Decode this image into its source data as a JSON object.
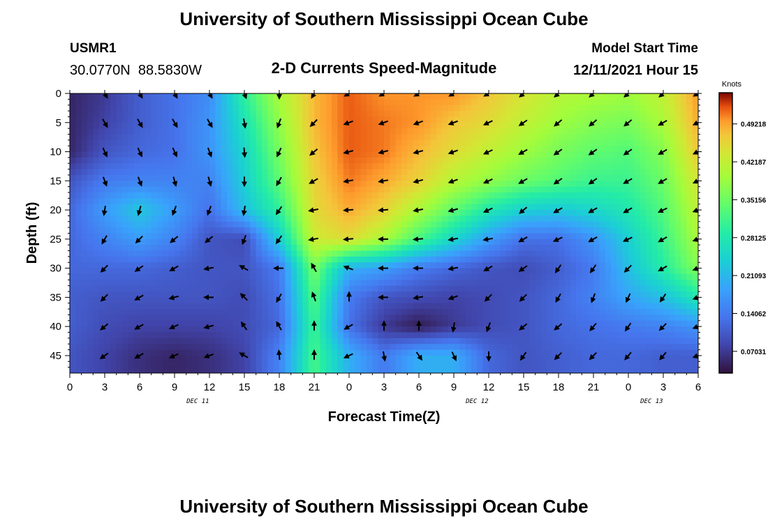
{
  "chart_data": {
    "type": "heatmap",
    "title": "University of Southern Mississippi Ocean Cube",
    "subtitle": "2-D Currents Speed-Magnitude",
    "station_id": "USMR1",
    "station_coords": "30.0770N  88.5830W",
    "model_start_label": "Model Start Time",
    "model_start_value": "12/11/2021 Hour 15",
    "xlabel": "Forecast Time(Z)",
    "ylabel": "Depth (ft)",
    "x_tick_labels": [
      "0",
      "3",
      "6",
      "9",
      "12",
      "15",
      "18",
      "21",
      "0",
      "3",
      "6",
      "9",
      "12",
      "15",
      "18",
      "21",
      "0",
      "3",
      "6"
    ],
    "x_date_labels": [
      {
        "label": "DEC 11",
        "hour_index": 11
      },
      {
        "label": "DEC 12",
        "hour_index": 35
      },
      {
        "label": "DEC 13",
        "hour_index": 50
      }
    ],
    "x_hours_range": [
      0,
      54
    ],
    "y_ticks": [
      0,
      5,
      10,
      15,
      20,
      25,
      30,
      35,
      40,
      45
    ],
    "ylim": [
      0,
      48
    ],
    "colorbar": {
      "title": "Knots",
      "ticks": [
        "0.49218",
        "0.42187",
        "0.35156",
        "0.28125",
        "0.21093",
        "0.14062",
        "0.07031"
      ],
      "tick_values": [
        0.49218,
        0.42187,
        0.35156,
        0.28125,
        0.21093,
        0.14062,
        0.07031
      ],
      "range": [
        0.03,
        0.55
      ]
    },
    "speed_grid": {
      "hours": [
        0,
        3,
        6,
        9,
        12,
        15,
        18,
        21,
        24,
        27,
        30,
        33,
        36,
        39,
        42,
        45,
        48,
        51,
        54
      ],
      "depths": [
        0,
        5,
        10,
        15,
        20,
        25,
        30,
        35,
        40,
        45
      ],
      "values": [
        [
          0.05,
          0.07,
          0.11,
          0.13,
          0.16,
          0.3,
          0.4,
          0.48,
          0.52,
          0.5,
          0.5,
          0.5,
          0.47,
          0.44,
          0.41,
          0.4,
          0.39,
          0.42,
          0.5
        ],
        [
          0.05,
          0.08,
          0.11,
          0.13,
          0.17,
          0.27,
          0.38,
          0.48,
          0.52,
          0.51,
          0.5,
          0.47,
          0.45,
          0.42,
          0.39,
          0.37,
          0.36,
          0.4,
          0.49
        ],
        [
          0.05,
          0.1,
          0.12,
          0.13,
          0.17,
          0.25,
          0.36,
          0.47,
          0.52,
          0.51,
          0.48,
          0.45,
          0.42,
          0.39,
          0.36,
          0.34,
          0.33,
          0.37,
          0.47
        ],
        [
          0.1,
          0.14,
          0.15,
          0.15,
          0.15,
          0.24,
          0.34,
          0.46,
          0.51,
          0.49,
          0.46,
          0.41,
          0.38,
          0.35,
          0.33,
          0.31,
          0.31,
          0.35,
          0.44
        ],
        [
          0.12,
          0.18,
          0.23,
          0.18,
          0.13,
          0.22,
          0.3,
          0.45,
          0.49,
          0.46,
          0.4,
          0.34,
          0.28,
          0.24,
          0.23,
          0.25,
          0.28,
          0.33,
          0.42
        ],
        [
          0.12,
          0.15,
          0.18,
          0.15,
          0.1,
          0.09,
          0.24,
          0.43,
          0.45,
          0.4,
          0.32,
          0.25,
          0.18,
          0.13,
          0.13,
          0.17,
          0.24,
          0.31,
          0.4
        ],
        [
          0.12,
          0.12,
          0.12,
          0.11,
          0.1,
          0.1,
          0.14,
          0.36,
          0.2,
          0.18,
          0.14,
          0.12,
          0.1,
          0.09,
          0.11,
          0.14,
          0.22,
          0.29,
          0.37
        ],
        [
          0.11,
          0.1,
          0.1,
          0.1,
          0.1,
          0.09,
          0.13,
          0.33,
          0.14,
          0.1,
          0.09,
          0.08,
          0.09,
          0.1,
          0.12,
          0.15,
          0.19,
          0.22,
          0.28
        ],
        [
          0.11,
          0.09,
          0.08,
          0.08,
          0.08,
          0.09,
          0.12,
          0.31,
          0.13,
          0.07,
          0.04,
          0.07,
          0.09,
          0.1,
          0.12,
          0.13,
          0.14,
          0.15,
          0.17
        ],
        [
          0.1,
          0.08,
          0.06,
          0.05,
          0.06,
          0.08,
          0.15,
          0.32,
          0.2,
          0.14,
          0.2,
          0.2,
          0.12,
          0.1,
          0.11,
          0.12,
          0.12,
          0.11,
          0.11
        ]
      ]
    },
    "direction_hours": [
      3,
      6,
      9,
      12,
      15,
      18,
      21,
      24,
      27,
      30,
      33,
      36,
      39,
      42,
      45,
      48,
      51,
      54
    ],
    "direction_depths": [
      0,
      5,
      10,
      15,
      20,
      25,
      30,
      35,
      40,
      45
    ],
    "direction_deg_note": "degrees clockwise from north toward which current flows",
    "directions": [
      [
        150,
        150,
        150,
        150,
        160,
        180,
        210,
        240,
        240,
        240,
        240,
        240,
        230,
        230,
        230,
        230,
        230,
        240
      ],
      [
        150,
        150,
        150,
        150,
        170,
        200,
        225,
        250,
        250,
        250,
        250,
        245,
        235,
        230,
        230,
        230,
        240,
        245
      ],
      [
        155,
        155,
        155,
        160,
        175,
        205,
        230,
        255,
        255,
        255,
        250,
        245,
        240,
        235,
        235,
        235,
        240,
        245
      ],
      [
        160,
        160,
        165,
        165,
        180,
        210,
        240,
        260,
        260,
        255,
        250,
        245,
        240,
        235,
        235,
        240,
        240,
        245
      ],
      [
        190,
        195,
        200,
        200,
        190,
        215,
        260,
        265,
        265,
        260,
        255,
        245,
        230,
        240,
        240,
        240,
        245,
        250
      ],
      [
        210,
        225,
        230,
        230,
        200,
        215,
        260,
        265,
        270,
        265,
        260,
        260,
        240,
        245,
        240,
        245,
        240,
        250
      ],
      [
        225,
        235,
        240,
        260,
        300,
        270,
        330,
        290,
        270,
        270,
        260,
        240,
        235,
        215,
        215,
        225,
        240,
        250
      ],
      [
        225,
        240,
        255,
        270,
        315,
        210,
        340,
        0,
        270,
        260,
        250,
        225,
        225,
        210,
        200,
        205,
        215,
        250
      ],
      [
        230,
        240,
        245,
        255,
        325,
        330,
        0,
        240,
        0,
        0,
        190,
        200,
        230,
        230,
        220,
        215,
        225,
        250
      ],
      [
        235,
        240,
        245,
        250,
        300,
        355,
        0,
        245,
        170,
        145,
        155,
        180,
        215,
        225,
        225,
        220,
        220,
        250
      ]
    ]
  }
}
